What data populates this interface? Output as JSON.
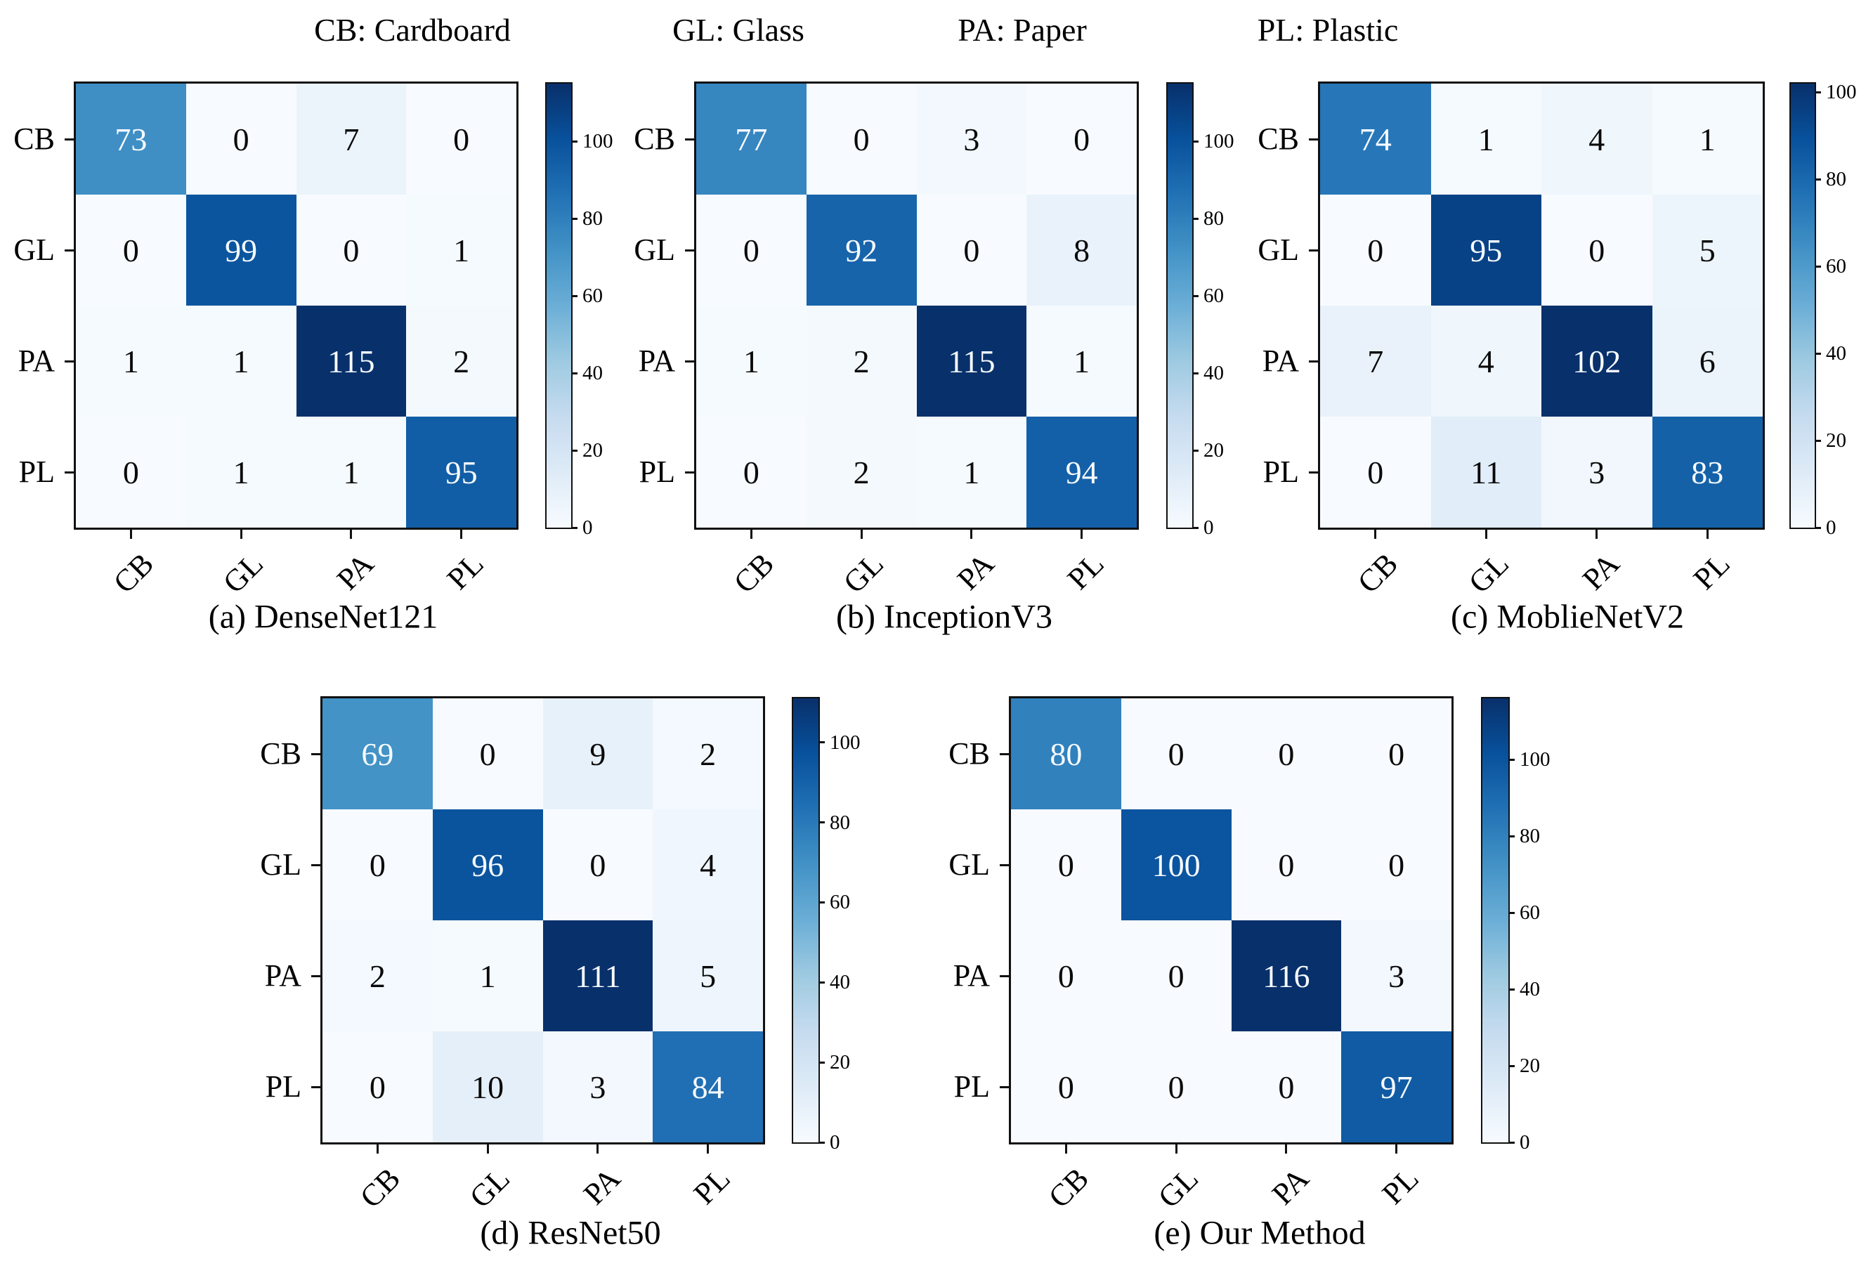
{
  "figure": {
    "background": "#ffffff",
    "legend": {
      "position": "top",
      "items": [
        {
          "label": "CB: Cardboard"
        },
        {
          "label": "GL: Glass"
        },
        {
          "label": "PA: Paper"
        },
        {
          "label": "PL: Plastic"
        }
      ]
    },
    "colors": {
      "colormap_name": "Blues",
      "colormap_anchors": [
        "#f7fbff",
        "#deebf7",
        "#c6dbef",
        "#9ecae1",
        "#6baed6",
        "#4292c6",
        "#2171b5",
        "#08519c",
        "#08306b"
      ],
      "frame": "#111111",
      "axis_text": "#000000",
      "cell_text_dark": "#0a0a0a",
      "cell_text_light": "#f7fbff"
    }
  },
  "chart_data": [
    {
      "type": "heatmap",
      "title": "(a) DenseNet121",
      "x_labels": [
        "CB",
        "GL",
        "PA",
        "PL"
      ],
      "y_labels": [
        "CB",
        "GL",
        "PA",
        "PL"
      ],
      "matrix": [
        [
          73,
          0,
          7,
          0
        ],
        [
          0,
          99,
          0,
          1
        ],
        [
          1,
          1,
          115,
          2
        ],
        [
          0,
          1,
          1,
          95
        ]
      ],
      "vmin": 0,
      "vmax": 115,
      "colorbar_ticks": [
        0,
        20,
        40,
        60,
        80,
        100
      ],
      "legend_position": "right-colorbar",
      "grid": false
    },
    {
      "type": "heatmap",
      "title": "(b) InceptionV3",
      "x_labels": [
        "CB",
        "GL",
        "PA",
        "PL"
      ],
      "y_labels": [
        "CB",
        "GL",
        "PA",
        "PL"
      ],
      "matrix": [
        [
          77,
          0,
          3,
          0
        ],
        [
          0,
          92,
          0,
          8
        ],
        [
          1,
          2,
          115,
          1
        ],
        [
          0,
          2,
          1,
          94
        ]
      ],
      "vmin": 0,
      "vmax": 115,
      "colorbar_ticks": [
        0,
        20,
        40,
        60,
        80,
        100
      ],
      "legend_position": "right-colorbar",
      "grid": false
    },
    {
      "type": "heatmap",
      "title": "(c) MoblieNetV2",
      "x_labels": [
        "CB",
        "GL",
        "PA",
        "PL"
      ],
      "y_labels": [
        "CB",
        "GL",
        "PA",
        "PL"
      ],
      "matrix": [
        [
          74,
          1,
          4,
          1
        ],
        [
          0,
          95,
          0,
          5
        ],
        [
          7,
          4,
          102,
          6
        ],
        [
          0,
          11,
          3,
          83
        ]
      ],
      "vmin": 0,
      "vmax": 102,
      "colorbar_ticks": [
        0,
        20,
        40,
        60,
        80,
        100
      ],
      "legend_position": "right-colorbar",
      "grid": false
    },
    {
      "type": "heatmap",
      "title": "(d) ResNet50",
      "x_labels": [
        "CB",
        "GL",
        "PA",
        "PL"
      ],
      "y_labels": [
        "CB",
        "GL",
        "PA",
        "PL"
      ],
      "matrix": [
        [
          69,
          0,
          9,
          2
        ],
        [
          0,
          96,
          0,
          4
        ],
        [
          2,
          1,
          111,
          5
        ],
        [
          0,
          10,
          3,
          84
        ]
      ],
      "vmin": 0,
      "vmax": 111,
      "colorbar_ticks": [
        0,
        20,
        40,
        60,
        80,
        100
      ],
      "legend_position": "right-colorbar",
      "grid": false
    },
    {
      "type": "heatmap",
      "title": "(e) Our Method",
      "x_labels": [
        "CB",
        "GL",
        "PA",
        "PL"
      ],
      "y_labels": [
        "CB",
        "GL",
        "PA",
        "PL"
      ],
      "matrix": [
        [
          80,
          0,
          0,
          0
        ],
        [
          0,
          100,
          0,
          0
        ],
        [
          0,
          0,
          116,
          3
        ],
        [
          0,
          0,
          0,
          97
        ]
      ],
      "vmin": 0,
      "vmax": 116,
      "colorbar_ticks": [
        0,
        20,
        40,
        60,
        80,
        100
      ],
      "legend_position": "right-colorbar",
      "grid": false
    }
  ]
}
